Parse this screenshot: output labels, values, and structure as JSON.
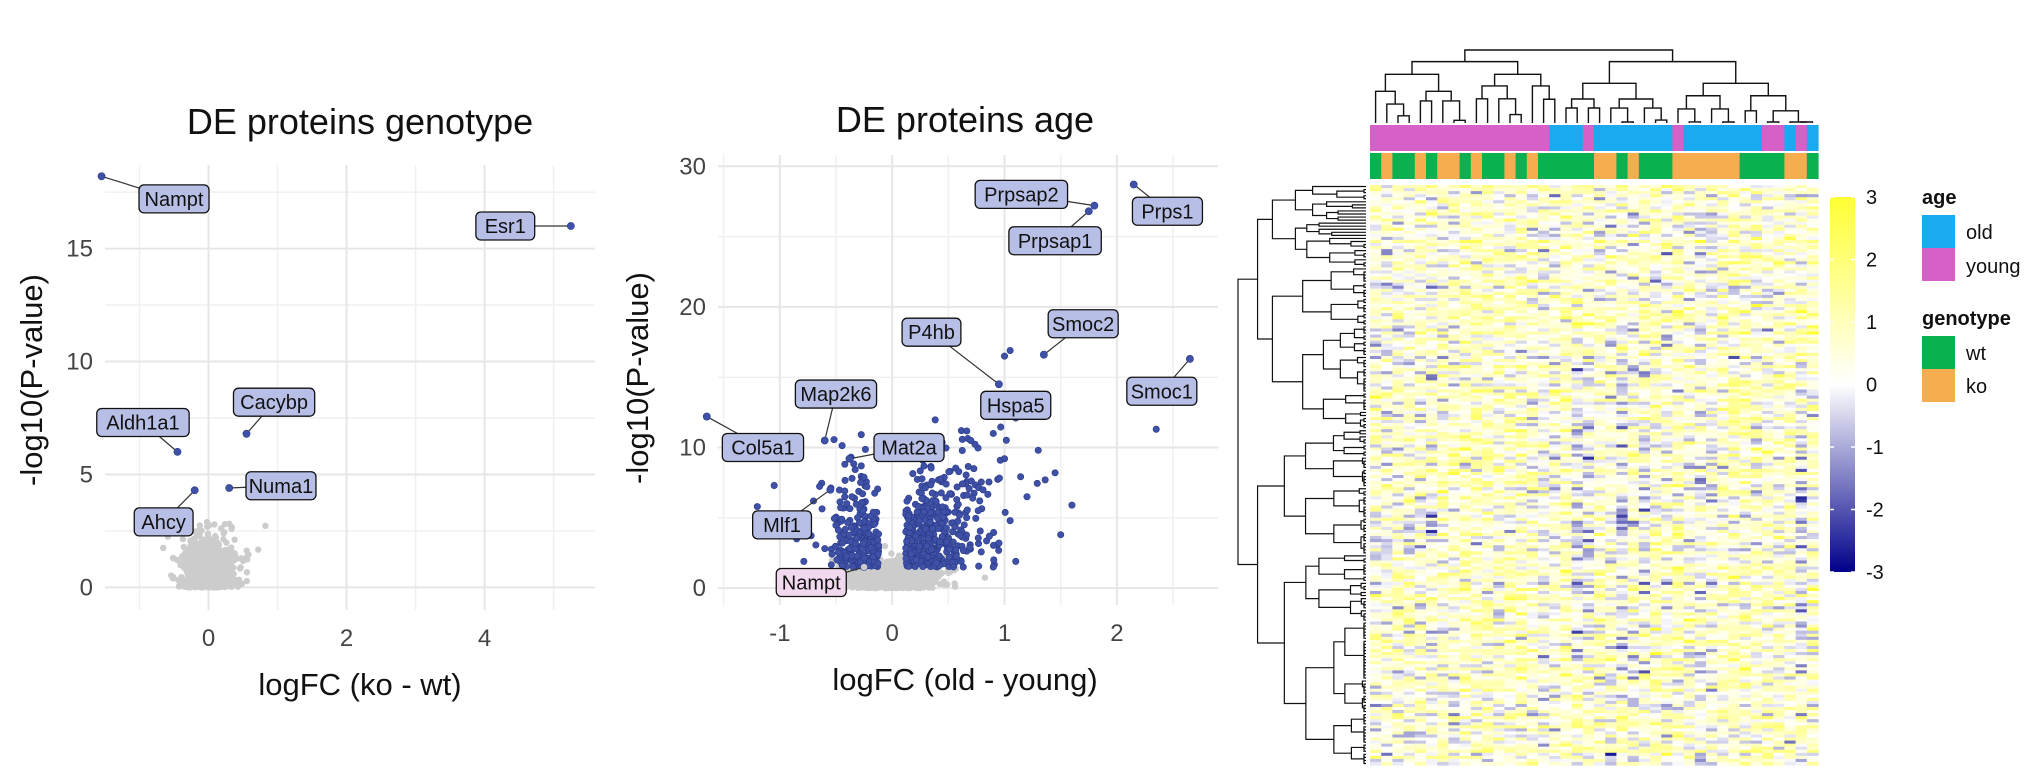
{
  "chart_data": [
    {
      "type": "scatter",
      "title": "DE proteins genotype",
      "xlabel": "logFC (ko - wt)",
      "ylabel": "-log10(P-value)",
      "xlim": [
        -1.5,
        5.6
      ],
      "ylim": [
        -1,
        18.7
      ],
      "xticks": [
        0,
        2,
        4
      ],
      "yticks": [
        0,
        5,
        10,
        15
      ],
      "colors": {
        "significant": "#3f51a6",
        "nonsignificant": "#cccccc",
        "label_fill": "#b8bfe6"
      },
      "labeled_points": [
        {
          "label": "Nampt",
          "x": -1.55,
          "y": 18.2,
          "lx": -0.5,
          "ly": 17.2
        },
        {
          "label": "Esr1",
          "x": 5.25,
          "y": 16.0,
          "lx": 4.3,
          "ly": 16.0
        },
        {
          "label": "Aldh1a1",
          "x": -0.45,
          "y": 6.0,
          "lx": -0.95,
          "ly": 7.3
        },
        {
          "label": "Cacybp",
          "x": 0.55,
          "y": 6.8,
          "lx": 0.95,
          "ly": 8.2
        },
        {
          "label": "Numa1",
          "x": 0.3,
          "y": 4.4,
          "lx": 1.05,
          "ly": 4.5
        },
        {
          "label": "Ahcy",
          "x": -0.2,
          "y": 4.3,
          "lx": -0.65,
          "ly": 2.9
        }
      ]
    },
    {
      "type": "scatter",
      "title": "DE proteins age",
      "xlabel": "logFC (old - young)",
      "ylabel": "-log10(P-value)",
      "xlim": [
        -1.55,
        2.9
      ],
      "ylim": [
        -1.2,
        30.8
      ],
      "xticks": [
        -1,
        0,
        1,
        2
      ],
      "yticks": [
        0,
        10,
        20,
        30
      ],
      "colors": {
        "significant": "#3f51a6",
        "nonsignificant": "#cccccc",
        "label_fill": "#b8bfe6",
        "highlight_fill": "#f2d8ef"
      },
      "labeled_points": [
        {
          "label": "Prpsap2",
          "x": 1.8,
          "y": 27.2,
          "lx": 1.15,
          "ly": 28.0
        },
        {
          "label": "Prps1",
          "x": 2.15,
          "y": 28.7,
          "lx": 2.45,
          "ly": 26.8
        },
        {
          "label": "Prpsap1",
          "x": 1.75,
          "y": 26.8,
          "lx": 1.45,
          "ly": 24.7
        },
        {
          "label": "Smoc2",
          "x": 1.35,
          "y": 16.6,
          "lx": 1.7,
          "ly": 18.8
        },
        {
          "label": "P4hb",
          "x": 0.95,
          "y": 14.5,
          "lx": 0.35,
          "ly": 18.2
        },
        {
          "label": "Smoc1",
          "x": 2.65,
          "y": 16.3,
          "lx": 2.4,
          "ly": 14.0
        },
        {
          "label": "Hspa5",
          "x": 0.85,
          "y": 13.4,
          "lx": 1.1,
          "ly": 13.0
        },
        {
          "label": "Map2k6",
          "x": -0.6,
          "y": 10.5,
          "lx": -0.5,
          "ly": 13.8
        },
        {
          "label": "Mat2a",
          "x": -0.38,
          "y": 9.2,
          "lx": 0.15,
          "ly": 10.0
        },
        {
          "label": "Col5a1",
          "x": -1.65,
          "y": 12.2,
          "lx": -1.15,
          "ly": 10.0
        },
        {
          "label": "Mlf1",
          "x": -0.55,
          "y": 7.0,
          "lx": -0.98,
          "ly": 4.5
        },
        {
          "label": "Nampt",
          "x": -0.25,
          "y": 1.5,
          "lx": -0.72,
          "ly": 0.4,
          "highlight": true
        }
      ]
    },
    {
      "type": "heatmap",
      "n_columns": 40,
      "column_annotations": {
        "age": [
          "young",
          "young",
          "young",
          "young",
          "young",
          "young",
          "young",
          "young",
          "young",
          "young",
          "young",
          "young",
          "young",
          "young",
          "young",
          "young",
          "old",
          "old",
          "old",
          "young",
          "old",
          "old",
          "old",
          "old",
          "old",
          "old",
          "old",
          "young",
          "old",
          "old",
          "old",
          "old",
          "old",
          "old",
          "old",
          "young",
          "young",
          "old",
          "young",
          "old"
        ],
        "genotype": [
          "wt",
          "ko",
          "wt",
          "wt",
          "ko",
          "wt",
          "ko",
          "ko",
          "wt",
          "ko",
          "wt",
          "wt",
          "ko",
          "wt",
          "ko",
          "wt",
          "wt",
          "wt",
          "wt",
          "wt",
          "ko",
          "ko",
          "wt",
          "ko",
          "wt",
          "wt",
          "wt",
          "ko",
          "ko",
          "ko",
          "ko",
          "ko",
          "ko",
          "wt",
          "wt",
          "wt",
          "wt",
          "ko",
          "ko",
          "wt"
        ]
      },
      "colorbar": {
        "ticks": [
          3,
          2,
          1,
          0,
          -1,
          -2,
          -3
        ],
        "range": [
          -3,
          3
        ]
      },
      "legend": [
        {
          "title": "age",
          "items": [
            {
              "label": "old",
              "color": "#1aaaf0"
            },
            {
              "label": "young",
              "color": "#d65fc8"
            }
          ]
        },
        {
          "title": "genotype",
          "items": [
            {
              "label": "wt",
              "color": "#0bb150"
            },
            {
              "label": "ko",
              "color": "#f5ad50"
            }
          ]
        }
      ]
    }
  ]
}
